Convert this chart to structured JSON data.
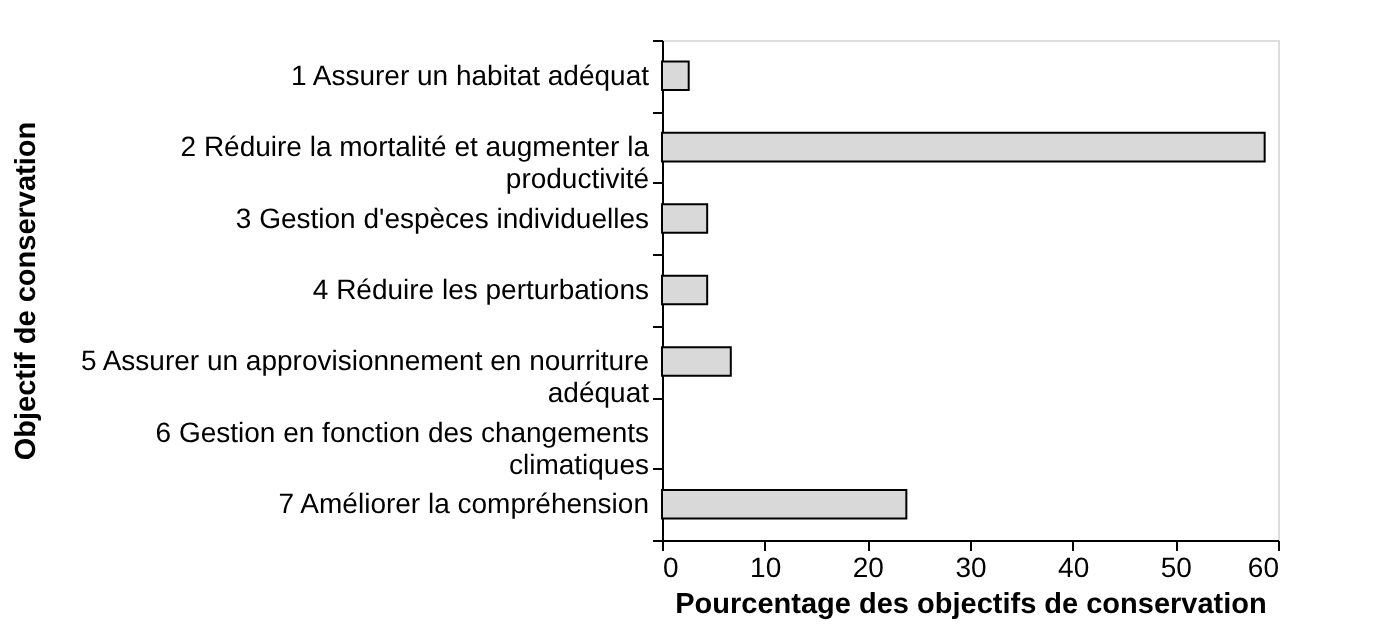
{
  "chart_data": {
    "type": "bar",
    "orientation": "horizontal",
    "xlabel": "Pourcentage des objectifs de conservation",
    "ylabel": "Objectif de conservation",
    "categories": [
      "1 Assurer un habitat adéquat",
      "2 Réduire la mortalité et augmenter la productivité",
      "3 Gestion d'espèces individuelles",
      "4 Réduire les perturbations",
      "5 Assurer un approvisionnement en nourriture adéquat",
      "6 Gestion en fonction des changements climatiques",
      "7 Améliorer la compréhension"
    ],
    "values": [
      2.6,
      58.7,
      4.4,
      4.4,
      6.7,
      0,
      23.8
    ],
    "color": "#d9d9d9",
    "xlim": [
      0,
      60
    ],
    "xticks": [
      0,
      10,
      20,
      30,
      40,
      50,
      60
    ],
    "grid": false
  }
}
